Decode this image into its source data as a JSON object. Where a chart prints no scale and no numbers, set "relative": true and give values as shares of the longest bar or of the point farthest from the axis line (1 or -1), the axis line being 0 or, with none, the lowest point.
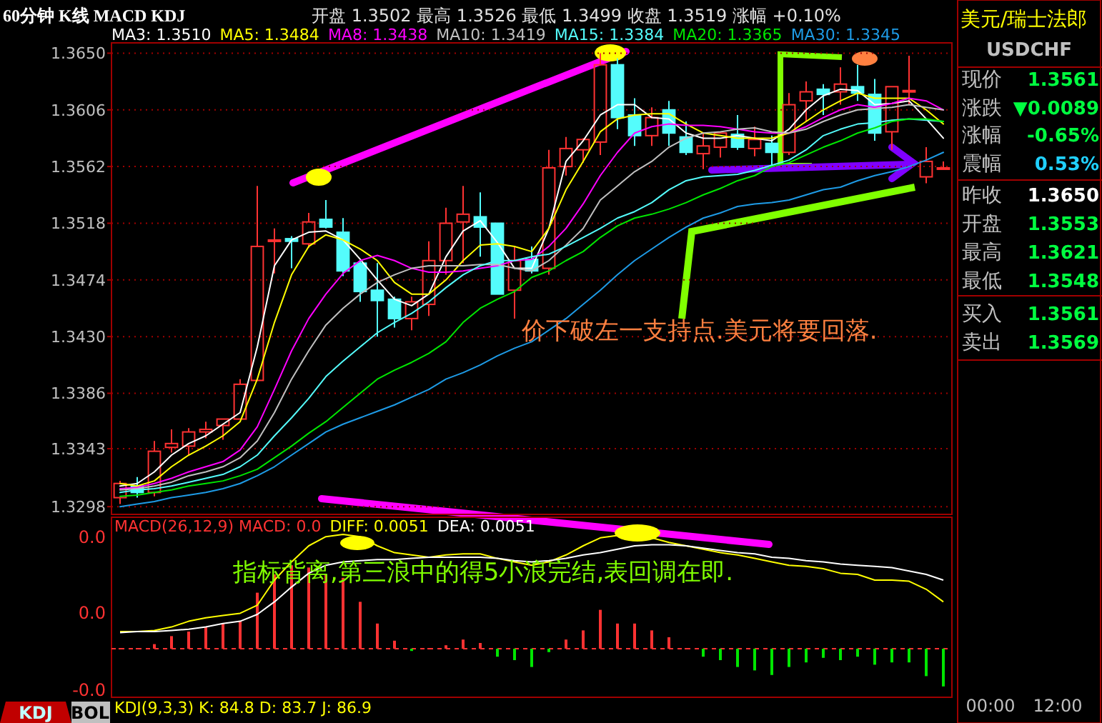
{
  "chart_data": [
    {
      "type": "candlestick",
      "title": "60分钟 K线 MACD KDJ",
      "subtitle": "开盘 1.3502 最高 1.3526 最低 1.3499 收盘 1.3519 涨幅 +0.10%",
      "categories": [
        null,
        null,
        null,
        null,
        null,
        null,
        null,
        null,
        null,
        null,
        null,
        null,
        null,
        null,
        null,
        null,
        null,
        null,
        null,
        null,
        null,
        null,
        null,
        null,
        null,
        null,
        null,
        null,
        null,
        null,
        null,
        null,
        null,
        null,
        null,
        null,
        null,
        null,
        null,
        null,
        null,
        null,
        null,
        null,
        null,
        null,
        null,
        null,
        null
      ],
      "ohlc": [
        [
          1.3305,
          1.3318,
          1.33,
          1.3316
        ],
        [
          1.3314,
          1.3321,
          1.3305,
          1.3309
        ],
        [
          1.3309,
          1.3349,
          1.3306,
          1.3341
        ],
        [
          1.3344,
          1.3358,
          1.334,
          1.3347
        ],
        [
          1.3345,
          1.3359,
          1.3338,
          1.3356
        ],
        [
          1.3356,
          1.3364,
          1.3351,
          1.3358
        ],
        [
          1.3361,
          1.3366,
          1.335,
          1.3366
        ],
        [
          1.3366,
          1.3397,
          1.3366,
          1.3393
        ],
        [
          1.3396,
          1.3547,
          1.3396,
          1.35
        ],
        [
          1.3504,
          1.3514,
          1.3479,
          1.3505
        ],
        [
          1.3506,
          1.3508,
          1.3483,
          1.3504
        ],
        [
          1.3502,
          1.3526,
          1.3499,
          1.3519
        ],
        [
          1.3521,
          1.3536,
          1.3514,
          1.3515
        ],
        [
          1.3511,
          1.3522,
          1.3477,
          1.3481
        ],
        [
          1.3487,
          1.3489,
          1.3457,
          1.3465
        ],
        [
          1.3466,
          1.3487,
          1.343,
          1.3458
        ],
        [
          1.3459,
          1.3461,
          1.3437,
          1.3444
        ],
        [
          1.3444,
          1.3461,
          1.3435,
          1.3457
        ],
        [
          1.3455,
          1.3504,
          1.3446,
          1.3489
        ],
        [
          1.3489,
          1.353,
          1.3478,
          1.3518
        ],
        [
          1.3519,
          1.3547,
          1.3487,
          1.3525
        ],
        [
          1.3523,
          1.3542,
          1.3492,
          1.3515
        ],
        [
          1.3518,
          1.3518,
          1.3463,
          1.3463
        ],
        [
          1.3466,
          1.35,
          1.3444,
          1.3489
        ],
        [
          1.349,
          1.35,
          1.3479,
          1.3481
        ],
        [
          1.3483,
          1.3575,
          1.3478,
          1.3561
        ],
        [
          1.3562,
          1.3585,
          1.3555,
          1.3576
        ],
        [
          1.3575,
          1.3584,
          1.3565,
          1.3583
        ],
        [
          1.3581,
          1.365,
          1.3571,
          1.3641
        ],
        [
          1.3641,
          1.3646,
          1.3591,
          1.36
        ],
        [
          1.3602,
          1.3615,
          1.3578,
          1.3586
        ],
        [
          1.3586,
          1.3608,
          1.3578,
          1.36
        ],
        [
          1.3606,
          1.3613,
          1.3578,
          1.3588
        ],
        [
          1.3585,
          1.3597,
          1.3571,
          1.3573
        ],
        [
          1.3572,
          1.3588,
          1.356,
          1.3578
        ],
        [
          1.3577,
          1.3589,
          1.3569,
          1.3588
        ],
        [
          1.3587,
          1.3602,
          1.3575,
          1.3577
        ],
        [
          1.3576,
          1.3593,
          1.357,
          1.3583
        ],
        [
          1.358,
          1.3586,
          1.3562,
          1.3573
        ],
        [
          1.3573,
          1.3619,
          1.3571,
          1.361
        ],
        [
          1.3613,
          1.3628,
          1.3597,
          1.362
        ],
        [
          1.3622,
          1.3626,
          1.3602,
          1.3618
        ],
        [
          1.362,
          1.3639,
          1.361,
          1.3626
        ],
        [
          1.3624,
          1.3641,
          1.3613,
          1.3619
        ],
        [
          1.3618,
          1.363,
          1.3582,
          1.3588
        ],
        [
          1.3589,
          1.3624,
          1.3575,
          1.3624
        ],
        [
          1.362,
          1.3648,
          1.361,
          1.3621
        ],
        [
          1.3554,
          1.3577,
          1.3549,
          1.3566
        ],
        [
          1.356,
          1.3566,
          1.356,
          1.3561
        ]
      ],
      "series": [
        {
          "name": "MA3: 1.3510",
          "type": "line",
          "color": "#ffffff",
          "values": [
            1.3314,
            1.3316,
            1.3325,
            1.3338,
            1.3347,
            1.3353,
            1.3362,
            1.3371,
            1.3422,
            1.3485,
            1.3505,
            1.3511,
            1.3512,
            1.3505,
            1.349,
            1.3474,
            1.3459,
            1.3454,
            1.3463,
            1.3492,
            1.3512,
            1.352,
            1.3503,
            1.3483,
            1.3483,
            1.3514,
            1.3566,
            1.3582,
            1.3602,
            1.361,
            1.361,
            1.36,
            1.3599,
            1.3588,
            1.3584,
            1.3584,
            1.3586,
            1.3584,
            1.3582,
            1.3591,
            1.3606,
            1.3617,
            1.3622,
            1.3621,
            1.361,
            1.3611,
            1.3613,
            1.3599,
            1.3584
          ]
        },
        {
          "name": "MA5: 1.3484",
          "type": "line",
          "color": "#ffff00",
          "values": [
            1.3316,
            1.3314,
            1.3318,
            1.3329,
            1.3338,
            1.3345,
            1.3353,
            1.3364,
            1.3397,
            1.3441,
            1.3478,
            1.35,
            1.3509,
            1.3505,
            1.3498,
            1.3489,
            1.3472,
            1.3463,
            1.3463,
            1.3474,
            1.3489,
            1.3501,
            1.3502,
            1.35,
            1.3496,
            1.3514,
            1.3544,
            1.3566,
            1.3589,
            1.3599,
            1.3602,
            1.3603,
            1.3603,
            1.3595,
            1.3588,
            1.3586,
            1.3584,
            1.3584,
            1.3584,
            1.3588,
            1.3597,
            1.3606,
            1.3613,
            1.3619,
            1.3615,
            1.3615,
            1.3615,
            1.3606,
            1.3595
          ]
        },
        {
          "name": "MA8: 1.3438",
          "type": "line",
          "color": "#ff00ff",
          "values": [
            1.3312,
            1.3313,
            1.3316,
            1.332,
            1.3325,
            1.3329,
            1.3333,
            1.3342,
            1.336,
            1.3389,
            1.3419,
            1.3444,
            1.3463,
            1.3479,
            1.3489,
            1.3493,
            1.3489,
            1.3483,
            1.348,
            1.348,
            1.3481,
            1.3483,
            1.3485,
            1.3489,
            1.349,
            1.35,
            1.3514,
            1.3533,
            1.3555,
            1.3573,
            1.3588,
            1.3593,
            1.3595,
            1.3594,
            1.3594,
            1.3593,
            1.3591,
            1.3589,
            1.3588,
            1.3588,
            1.3593,
            1.36,
            1.3606,
            1.361,
            1.3608,
            1.3611,
            1.3615,
            1.3613,
            1.3606
          ]
        },
        {
          "name": "MA10: 1.3419",
          "type": "line",
          "color": "#c0c0c0",
          "values": [
            1.3311,
            1.3312,
            1.3314,
            1.3317,
            1.3322,
            1.3325,
            1.3329,
            1.3336,
            1.3349,
            1.3371,
            1.3397,
            1.3419,
            1.3439,
            1.3452,
            1.3463,
            1.3472,
            1.3478,
            1.3483,
            1.3485,
            1.3485,
            1.3485,
            1.3486,
            1.3486,
            1.3483,
            1.3481,
            1.3489,
            1.3501,
            1.3514,
            1.3536,
            1.3547,
            1.3558,
            1.3566,
            1.3577,
            1.3584,
            1.3588,
            1.3589,
            1.3591,
            1.3592,
            1.3589,
            1.3588,
            1.3591,
            1.3597,
            1.3602,
            1.3606,
            1.3607,
            1.3608,
            1.361,
            1.3608,
            1.3606
          ]
        },
        {
          "name": "MA15: 1.3384",
          "type": "line",
          "color": "#54fcfc",
          "values": [
            1.3309,
            1.3311,
            1.3312,
            1.3314,
            1.3317,
            1.332,
            1.3323,
            1.3329,
            1.3338,
            1.3353,
            1.3367,
            1.3382,
            1.3399,
            1.3411,
            1.3422,
            1.3433,
            1.3441,
            1.3448,
            1.3457,
            1.3468,
            1.3478,
            1.3485,
            1.3489,
            1.3489,
            1.3492,
            1.3494,
            1.35,
            1.3507,
            1.3514,
            1.3522,
            1.3527,
            1.3534,
            1.3544,
            1.3551,
            1.3554,
            1.3555,
            1.3556,
            1.3559,
            1.3563,
            1.3567,
            1.3575,
            1.3586,
            1.3591,
            1.3595,
            1.3596,
            1.3598,
            1.3599,
            1.3598,
            1.3597
          ]
        },
        {
          "name": "MA20: 1.3365",
          "type": "line",
          "color": "#00e600",
          "values": [
            1.3306,
            1.3307,
            1.3309,
            1.3311,
            1.3314,
            1.3316,
            1.3318,
            1.3322,
            1.3327,
            1.3336,
            1.3345,
            1.3355,
            1.3364,
            1.3375,
            1.3386,
            1.3397,
            1.3404,
            1.341,
            1.3417,
            1.3426,
            1.3441,
            1.3452,
            1.3459,
            1.3465,
            1.3476,
            1.3481,
            1.3489,
            1.3496,
            1.3507,
            1.3516,
            1.3522,
            1.3525,
            1.3529,
            1.3534,
            1.354,
            1.3545,
            1.3551,
            1.3555,
            1.3562,
            1.3565,
            1.3571,
            1.3577,
            1.3582,
            1.3588,
            1.3592,
            1.3597,
            1.3599,
            1.3599,
            1.3597
          ]
        },
        {
          "name": "MA30: 1.3345",
          "type": "line",
          "color": "#1e9be6",
          "values": [
            1.3298,
            1.33,
            1.3302,
            1.3305,
            1.3307,
            1.3309,
            1.3312,
            1.3316,
            1.3322,
            1.3329,
            1.3338,
            1.3347,
            1.3356,
            1.3362,
            1.3367,
            1.3372,
            1.3377,
            1.3383,
            1.3389,
            1.3397,
            1.3402,
            1.3408,
            1.3415,
            1.3421,
            1.3426,
            1.3435,
            1.3444,
            1.3455,
            1.3466,
            1.3478,
            1.3489,
            1.3498,
            1.3507,
            1.3515,
            1.3522,
            1.3526,
            1.3531,
            1.3533,
            1.3534,
            1.3536,
            1.354,
            1.3544,
            1.3546,
            1.3551,
            1.3555,
            1.3558,
            1.3562,
            1.3567,
            1.3573
          ]
        }
      ],
      "ylim": [
        1.3292,
        1.3658
      ],
      "yticks": [
        1.3298,
        1.3343,
        1.3386,
        {
          "value": 1.343,
          "label": "1.3430"
        },
        1.3474,
        1.3518,
        1.3562,
        1.3606,
        {
          "value": 1.365,
          "label": "1.3650"
        }
      ],
      "grid": "y",
      "legend": "top",
      "annotations": [
        "价下破左一支持点.美元将要回落."
      ]
    },
    {
      "type": "bar",
      "relative": true,
      "categories": [
        null,
        null,
        null,
        null,
        null,
        null,
        null,
        null,
        null,
        null,
        null,
        null,
        null,
        null,
        null,
        null,
        null,
        null,
        null,
        null,
        null,
        null,
        null,
        null,
        null,
        null,
        null,
        null,
        null,
        null,
        null,
        null,
        null,
        null,
        null,
        null,
        null,
        null,
        null,
        null,
        null,
        null,
        null,
        null,
        null,
        null,
        null,
        null,
        null
      ],
      "series": [
        {
          "name": "MACD(26,12,9) MACD: 0.0",
          "type": "bar",
          "color": "#ff3232",
          "values": [
            0,
            0,
            0.04,
            0.11,
            0.15,
            0.19,
            0.22,
            0.24,
            0.49,
            0.65,
            0.73,
            0.71,
            0.65,
            0.62,
            0.41,
            0.22,
            0.07,
            -0.02,
            0,
            0.03,
            0.08,
            0.05,
            -0.07,
            -0.1,
            -0.16,
            -0.03,
            0.08,
            0.16,
            0.34,
            0.22,
            0.22,
            0.16,
            0.1,
            0,
            -0.07,
            -0.1,
            -0.16,
            -0.19,
            -0.23,
            -0.16,
            -0.12,
            -0.08,
            -0.1,
            -0.07,
            -0.14,
            -0.12,
            -0.12,
            -0.24,
            -0.33
          ],
          "colors": [
            "#ff3232",
            "#ff3232",
            "#ff3232",
            "#ff3232",
            "#ff3232",
            "#ff3232",
            "#ff3232",
            "#ff3232",
            "#ff3232",
            "#ff3232",
            "#ff3232",
            "#ff3232",
            "#ff3232",
            "#ff3232",
            "#ff3232",
            "#ff3232",
            "#ff3232",
            "#00e600",
            "#ff3232",
            "#ff3232",
            "#ff3232",
            "#ff3232",
            "#00e600",
            "#00e600",
            "#00e600",
            "#00e600",
            "#ff3232",
            "#ff3232",
            "#ff3232",
            "#ff3232",
            "#ff3232",
            "#ff3232",
            "#ff3232",
            "#ff3232",
            "#00e600",
            "#00e600",
            "#00e600",
            "#00e600",
            "#00e600",
            "#00e600",
            "#00e600",
            "#00e600",
            "#00e600",
            "#00e600",
            "#00e600",
            "#00e600",
            "#00e600",
            "#00e600",
            "#00e600"
          ]
        },
        {
          "name": "DIFF: 0.0051",
          "type": "line",
          "color": "#ffff00",
          "values": [
            0.15,
            0.15,
            0.16,
            0.19,
            0.24,
            0.27,
            0.29,
            0.31,
            0.38,
            0.6,
            0.76,
            0.9,
            0.98,
            1.0,
            0.98,
            0.9,
            0.84,
            0.82,
            0.8,
            0.82,
            0.83,
            0.83,
            0.79,
            0.76,
            0.73,
            0.76,
            0.82,
            0.9,
            0.97,
            0.99,
            0.99,
            0.97,
            0.93,
            0.9,
            0.87,
            0.84,
            0.82,
            0.79,
            0.76,
            0.73,
            0.72,
            0.7,
            0.66,
            0.65,
            0.6,
            0.6,
            0.59,
            0.52,
            0.41
          ]
        },
        {
          "name": "DEA: 0.0051",
          "type": "line",
          "color": "#ffffff",
          "values": [
            0.14,
            0.15,
            0.15,
            0.16,
            0.17,
            0.19,
            0.22,
            0.24,
            0.3,
            0.41,
            0.54,
            0.66,
            0.73,
            0.76,
            0.77,
            0.78,
            0.78,
            0.79,
            0.8,
            0.8,
            0.8,
            0.8,
            0.79,
            0.77,
            0.76,
            0.77,
            0.79,
            0.82,
            0.84,
            0.87,
            0.9,
            0.91,
            0.91,
            0.9,
            0.88,
            0.86,
            0.84,
            0.83,
            0.8,
            0.79,
            0.77,
            0.76,
            0.74,
            0.73,
            0.72,
            0.71,
            0.68,
            0.65,
            0.6
          ]
        }
      ],
      "legend": "top",
      "ref_lines": [
        {
          "axis": "y",
          "value": 0,
          "color": "#ff3232",
          "line_style": "dashed"
        }
      ],
      "annotations": [
        "指标背离,第三浪中的得5小浪完结,表回调在即.",
        "0.0",
        "0.0",
        "-0.0",
        "KDJ",
        "BOL",
        "KDJ(9,3,3) K: 84.8 D: 83.7 J: 86.9"
      ]
    },
    {
      "type": "other",
      "title": "美元/瑞士法郎",
      "subtitle": "USDCHF",
      "annotations": [
        "现价",
        "1.3561",
        "涨跌",
        "▼0.0089",
        "涨幅",
        "-0.65%",
        "震幅",
        "0.53%",
        "昨收",
        "1.3650",
        "开盘",
        "1.3553",
        "最高",
        "1.3621",
        "最低",
        "1.3548",
        "买入",
        "1.3561",
        "卖出",
        "1.3569",
        "00:00",
        "12:00"
      ]
    }
  ]
}
